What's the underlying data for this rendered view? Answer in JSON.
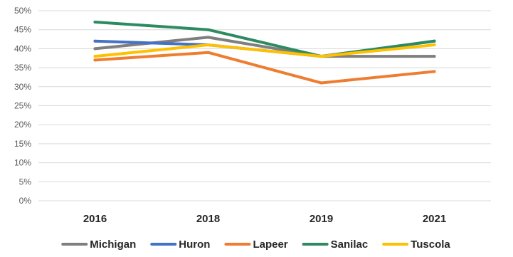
{
  "chart_data": {
    "type": "line",
    "title": "",
    "xlabel": "",
    "ylabel": "",
    "categories": [
      "2016",
      "2018",
      "2019",
      "2021"
    ],
    "y_tick_labels": [
      "0%",
      "5%",
      "10%",
      "15%",
      "20%",
      "25%",
      "30%",
      "35%",
      "40%",
      "45%",
      "50%"
    ],
    "ylim": [
      0,
      50
    ],
    "y_unit": "%",
    "grid": "horizontal",
    "legend_position": "bottom",
    "series": [
      {
        "name": "Michigan",
        "color": "#7f7f7f",
        "values": [
          40,
          43,
          38,
          38
        ]
      },
      {
        "name": "Huron",
        "color": "#4472c4",
        "values": [
          42,
          41,
          38,
          42
        ]
      },
      {
        "name": "Lapeer",
        "color": "#ed7d31",
        "values": [
          37,
          39,
          31,
          34
        ]
      },
      {
        "name": "Sanilac",
        "color": "#2e8b61",
        "values": [
          47,
          45,
          38,
          42
        ]
      },
      {
        "name": "Tuscola",
        "color": "#ffc000",
        "values": [
          38,
          41,
          38,
          41
        ]
      }
    ]
  }
}
